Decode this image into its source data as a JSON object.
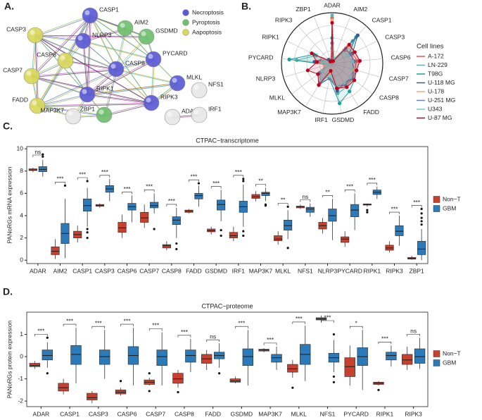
{
  "network": {
    "label": "A.",
    "legend": [
      {
        "name": "Necroptosis",
        "color": "#5b5bd6"
      },
      {
        "name": "Pyroptosis",
        "color": "#6fbf6f"
      },
      {
        "name": "Aapoptosis",
        "color": "#d8d85a"
      }
    ],
    "nodes": [
      {
        "label": "CASP1",
        "group": "Necroptosis"
      },
      {
        "label": "AIM2",
        "group": "Pyroptosis"
      },
      {
        "label": "GSDMD",
        "group": "Pyroptosis"
      },
      {
        "label": "CASP3",
        "group": "Aapoptosis"
      },
      {
        "label": "NLRP3",
        "group": "Necroptosis"
      },
      {
        "label": "PYCARD",
        "group": "Necroptosis"
      },
      {
        "label": "CASP6",
        "group": "Aapoptosis"
      },
      {
        "label": "CASP7",
        "group": "Aapoptosis"
      },
      {
        "label": "CASP8",
        "group": "Necroptosis"
      },
      {
        "label": "MLKL",
        "group": "Necroptosis"
      },
      {
        "label": "FADD",
        "group": "Aapoptosis"
      },
      {
        "label": "RIPK1",
        "group": "Necroptosis"
      },
      {
        "label": "RIPK3",
        "group": "Necroptosis"
      },
      {
        "label": "NFS1",
        "group": null
      },
      {
        "label": "MAP3K7",
        "group": null
      },
      {
        "label": "ZBP1",
        "group": "Pyroptosis"
      },
      {
        "label": "ADAR",
        "group": null
      },
      {
        "label": "IRF1",
        "group": null
      }
    ]
  },
  "chart_data": [
    {
      "type": "radar",
      "label": "B.",
      "legend_title": "Cell lines",
      "rlim": [
        0,
        1
      ],
      "rticks": [
        0.25,
        0.5,
        0.75,
        1
      ],
      "grid": true,
      "categories": [
        "ADAR",
        "AIM2",
        "CASP1",
        "CASP3",
        "CASP6",
        "CASP7",
        "CASP8",
        "FADD",
        "GSDMD",
        "IRF1",
        "MAP3K7",
        "MLKL",
        "NLRP3",
        "PYCARD",
        "RIPK1",
        "RIPK3",
        "ZBP1"
      ],
      "series": [
        {
          "name": "A-172",
          "color": "#e8534a",
          "values": [
            0.9,
            0.1,
            0.35,
            0.45,
            0.5,
            0.45,
            0.45,
            0.5,
            0.45,
            0.2,
            0.4,
            0.25,
            0.15,
            0.3,
            0.2,
            0.1,
            0.05
          ]
        },
        {
          "name": "LN-229",
          "color": "#5ab4ac",
          "values": [
            0.95,
            0.1,
            0.6,
            0.4,
            0.45,
            0.5,
            0.5,
            0.55,
            0.6,
            0.15,
            0.45,
            0.3,
            0.1,
            0.7,
            0.35,
            0.1,
            0.05
          ]
        },
        {
          "name": "T98G",
          "color": "#1a9e9e",
          "values": [
            0.5,
            0.05,
            0.7,
            0.35,
            0.4,
            0.45,
            0.55,
            0.65,
            0.8,
            0.3,
            0.5,
            0.35,
            0.1,
            0.85,
            0.4,
            0.05,
            0.05
          ]
        },
        {
          "name": "U-118 MG",
          "color": "#3b5998",
          "values": [
            0.3,
            0.05,
            0.75,
            0.45,
            0.4,
            0.45,
            0.5,
            0.45,
            0.55,
            0.25,
            0.4,
            0.25,
            0.1,
            0.35,
            0.2,
            0.1,
            0.05
          ]
        },
        {
          "name": "U-178",
          "color": "#f4a582",
          "values": [
            0.85,
            0.1,
            0.45,
            0.5,
            0.55,
            0.45,
            0.55,
            0.5,
            0.5,
            0.2,
            0.45,
            0.3,
            0.15,
            0.25,
            0.2,
            0.05,
            0.05
          ]
        },
        {
          "name": "U-251 MG",
          "color": "#6c7fa6",
          "values": [
            0.4,
            0.05,
            0.4,
            0.4,
            0.45,
            0.5,
            0.5,
            0.5,
            0.5,
            0.3,
            0.45,
            0.3,
            0.1,
            0.3,
            0.15,
            0.05,
            0.05
          ]
        },
        {
          "name": "U343",
          "color": "#7bc8c8",
          "values": [
            0.3,
            0.1,
            0.3,
            0.35,
            0.4,
            0.4,
            0.45,
            0.45,
            0.45,
            0.25,
            0.4,
            0.25,
            0.1,
            0.2,
            0.15,
            0.05,
            0.05
          ]
        },
        {
          "name": "U-87 MG",
          "color": "#c0001a",
          "values": [
            0.8,
            0.05,
            0.5,
            0.5,
            0.55,
            0.5,
            0.55,
            0.55,
            0.5,
            0.15,
            0.5,
            0.35,
            0.5,
            0.3,
            0.45,
            0.05,
            0.05
          ]
        }
      ]
    },
    {
      "type": "box",
      "label": "C.",
      "title": "CTPAC−transcriptome",
      "y_label": "PANoRGs mRNA expression",
      "ylim": [
        -0.3,
        10.2
      ],
      "yticks": [
        0,
        2,
        4,
        6,
        8,
        10
      ],
      "legend": "right",
      "categories": [
        "ADAR",
        "AIM2",
        "CASP1",
        "CASP3",
        "CASP6",
        "CASP7",
        "CASP8",
        "FADD",
        "GSDMD",
        "IRF1",
        "MAP3K7",
        "MLKL",
        "NFS1",
        "NLRP3",
        "PYCARD",
        "RIPK1",
        "RIPK3",
        "ZBP1"
      ],
      "annotations": [
        "ns",
        "***",
        "***",
        "***",
        "***",
        "***",
        "***",
        "***",
        "***",
        "***",
        "**",
        "**",
        "ns",
        "**",
        "***",
        "***",
        "***",
        "***"
      ],
      "series": [
        {
          "name": "Non−T",
          "color": "#c8412f",
          "values": [
            [
              7.9,
              8.05,
              8.1,
              8.2,
              8.3
            ],
            [
              0.1,
              0.5,
              0.8,
              1.2,
              1.9
            ],
            [
              1.6,
              2.0,
              2.3,
              2.6,
              3.1
            ],
            [
              4.7,
              4.85,
              4.9,
              5.0,
              5.1
            ],
            [
              2.0,
              2.5,
              2.9,
              3.4,
              4.1
            ],
            [
              2.9,
              3.4,
              3.8,
              4.3,
              5.0
            ],
            [
              0.9,
              1.1,
              1.3,
              1.4,
              1.7
            ],
            [
              4.2,
              4.3,
              4.4,
              4.5,
              4.6
            ],
            [
              2.3,
              2.55,
              2.65,
              2.8,
              3.0
            ],
            [
              1.7,
              2.0,
              2.2,
              2.5,
              3.0
            ],
            [
              5.3,
              5.55,
              5.7,
              5.9,
              6.2
            ],
            [
              1.4,
              1.75,
              1.9,
              2.2,
              2.6
            ],
            [
              4.6,
              4.7,
              4.8,
              4.85,
              5.0
            ],
            [
              2.4,
              2.8,
              3.1,
              3.4,
              3.8
            ],
            [
              1.2,
              1.6,
              1.9,
              2.1,
              2.6
            ],
            [
              4.8,
              4.95,
              5.0,
              5.05,
              5.1
            ],
            [
              0.7,
              0.9,
              1.1,
              1.35,
              1.7
            ],
            [
              0.05,
              0.1,
              0.15,
              0.25,
              0.4
            ]
          ],
          "outliers": [
            [],
            [],
            [],
            [],
            [],
            [],
            [],
            [],
            [],
            [],
            [],
            [],
            [],
            [],
            [],
            [
              4.5,
              4.3
            ],
            [],
            []
          ]
        },
        {
          "name": "GBM",
          "color": "#2b7bba",
          "values": [
            [
              7.5,
              7.95,
              8.15,
              8.4,
              9.0
            ],
            [
              0.2,
              1.5,
              2.4,
              3.3,
              5.5
            ],
            [
              3.0,
              4.4,
              4.9,
              5.5,
              6.5
            ],
            [
              5.3,
              6.1,
              6.4,
              6.7,
              7.3
            ],
            [
              3.4,
              4.5,
              4.8,
              5.1,
              5.8
            ],
            [
              4.2,
              4.7,
              4.9,
              5.2,
              6.0
            ],
            [
              2.0,
              3.2,
              3.6,
              3.9,
              4.7
            ],
            [
              4.8,
              5.5,
              5.8,
              6.0,
              6.7
            ],
            [
              3.5,
              4.5,
              5.0,
              5.4,
              6.3
            ],
            [
              3.0,
              4.3,
              4.8,
              5.3,
              6.8
            ],
            [
              5.3,
              5.8,
              6.0,
              6.1,
              6.5
            ],
            [
              1.9,
              2.7,
              3.1,
              3.6,
              4.5
            ],
            [
              3.9,
              4.3,
              4.6,
              4.75,
              5.1
            ],
            [
              1.8,
              3.5,
              4.0,
              4.6,
              5.5
            ],
            [
              2.7,
              3.9,
              4.5,
              5.0,
              6.0
            ],
            [
              5.5,
              5.9,
              6.1,
              6.3,
              6.6
            ],
            [
              1.3,
              2.2,
              2.6,
              3.1,
              4.0
            ],
            [
              0.0,
              0.5,
              1.0,
              1.7,
              2.8
            ]
          ],
          "outliers": [
            [
              9.3,
              9.5
            ],
            [
              6.7
            ],
            [
              2.0,
              2.5,
              2.8,
              7.1
            ],
            [],
            [],
            [
              2.8
            ],
            [
              1.0,
              1.5
            ],
            [
              6.9
            ],
            [
              2.2,
              2.7
            ],
            [
              2.2,
              2.6,
              7.1,
              7.3
            ],
            [
              5.0,
              4.9
            ],
            [
              1.1,
              4.8
            ],
            [],
            [],
            [],
            [],
            [],
            [
              3.2,
              3.5,
              3.8,
              4.2,
              4.6
            ]
          ]
        }
      ]
    },
    {
      "type": "box",
      "label": "D.",
      "title": "CTPAC−proteome",
      "y_label": "PANoRGs protein expression",
      "ylim": [
        -2.25,
        2.0
      ],
      "yticks": [
        -2,
        -1,
        0,
        1
      ],
      "legend": "right",
      "categories": [
        "ADAR",
        "CASP1",
        "CASP3",
        "CASP6",
        "CASP7",
        "CASP8",
        "FADD",
        "GSDMD",
        "MAP3K7",
        "MLKL",
        "NFS1",
        "PYCARD",
        "RIPK1",
        "RIPK3"
      ],
      "annotations": [
        "***",
        "***",
        "***",
        "***",
        "***",
        "***",
        "ns",
        "***",
        "***",
        "***",
        "***",
        "*",
        "***",
        "ns"
      ],
      "series": [
        {
          "name": "Non−T",
          "color": "#c8412f",
          "values": [
            [
              -0.55,
              -0.45,
              -0.4,
              -0.3,
              -0.2
            ],
            [
              -1.7,
              -1.55,
              -1.4,
              -1.2,
              -1.0
            ],
            [
              -2.1,
              -1.95,
              -1.85,
              -1.65,
              -1.55
            ],
            [
              -1.75,
              -1.68,
              -1.6,
              -1.5,
              -1.4
            ],
            [
              -1.3,
              -1.25,
              -1.15,
              -1.05,
              -0.95
            ],
            [
              -1.4,
              -1.2,
              -1.0,
              -0.75,
              -0.6
            ],
            [
              -0.6,
              -0.3,
              -0.1,
              0.1,
              0.3
            ],
            [
              -1.2,
              -1.15,
              -1.1,
              -1.0,
              -0.9
            ],
            [
              0.2,
              0.25,
              0.3,
              0.33,
              0.38
            ],
            [
              -0.95,
              -0.7,
              -0.55,
              -0.35,
              -0.15
            ],
            [
              1.55,
              1.65,
              1.7,
              1.75,
              1.85
            ],
            [
              -1.3,
              -0.9,
              -0.45,
              -0.05,
              0.5
            ],
            [
              -1.3,
              -1.25,
              -1.2,
              -1.15,
              -1.1
            ],
            [
              -0.6,
              -0.35,
              -0.15,
              0.1,
              0.45
            ]
          ],
          "outliers": [
            [],
            [],
            [],
            [
              -1.1
            ],
            [
              -1.55,
              -0.75
            ],
            [
              -1.6
            ],
            [],
            [],
            [],
            [
              -1.4
            ],
            [],
            [],
            [
              -1.5
            ],
            []
          ]
        },
        {
          "name": "GBM",
          "color": "#2b7bba",
          "values": [
            [
              -0.5,
              -0.15,
              0.05,
              0.3,
              0.65
            ],
            [
              -1.2,
              -0.35,
              0.1,
              0.5,
              1.3
            ],
            [
              -1.0,
              -0.35,
              0.0,
              0.3,
              1.2
            ],
            [
              -1.3,
              -0.35,
              0.05,
              0.45,
              1.3
            ],
            [
              -1.3,
              -0.4,
              0.0,
              0.3,
              1.1
            ],
            [
              -0.7,
              -0.25,
              0.05,
              0.3,
              0.8
            ],
            [
              -0.5,
              -0.1,
              0.05,
              0.2,
              0.6
            ],
            [
              -1.3,
              -0.4,
              0.0,
              0.35,
              1.2
            ],
            [
              -0.6,
              -0.25,
              -0.05,
              0.1,
              0.45
            ],
            [
              -1.1,
              -0.35,
              0.1,
              0.55,
              1.4
            ],
            [
              -0.7,
              -0.25,
              -0.05,
              0.15,
              0.75
            ],
            [
              -1.5,
              -0.4,
              0.0,
              0.4,
              1.2
            ],
            [
              -0.45,
              -0.15,
              0.05,
              0.2,
              0.5
            ],
            [
              -0.55,
              -0.3,
              0.0,
              0.35,
              0.85
            ]
          ],
          "outliers": [
            [
              0.85,
              -0.75
            ],
            [],
            [],
            [],
            [],
            [],
            [
              -0.75
            ],
            [],
            [],
            [],
            [
              -0.9,
              -1.15,
              1.0
            ],
            [],
            [],
            []
          ]
        }
      ]
    }
  ]
}
